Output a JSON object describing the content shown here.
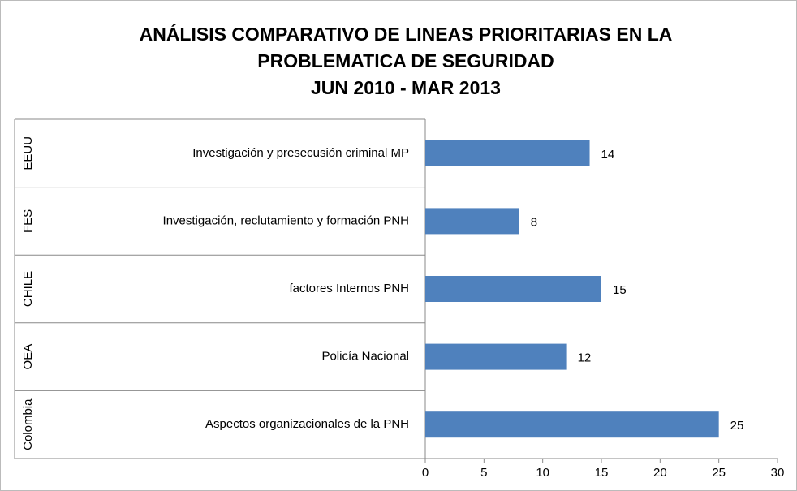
{
  "chart_data": {
    "type": "bar",
    "orientation": "horizontal",
    "title": [
      "ANÁLISIS COMPARATIVO DE LINEAS PRIORITARIAS EN LA",
      "PROBLEMATICA DE SEGURIDAD",
      "JUN 2010 - MAR 2013"
    ],
    "groups": [
      "EEUU",
      "FES",
      "CHILE",
      "OEA",
      "Colombia"
    ],
    "categories": [
      "Investigación y presecusión criminal MP",
      "Investigación, reclutamiento y formación PNH",
      "factores Internos PNH",
      "Policía Nacional",
      "Aspectos organizacionales de la PNH"
    ],
    "values": [
      14,
      8,
      15,
      12,
      25
    ],
    "color": "#4f81bd",
    "xlim": [
      0,
      30
    ],
    "xticks": [
      0,
      5,
      10,
      15,
      20,
      25,
      30
    ],
    "grid": false
  }
}
